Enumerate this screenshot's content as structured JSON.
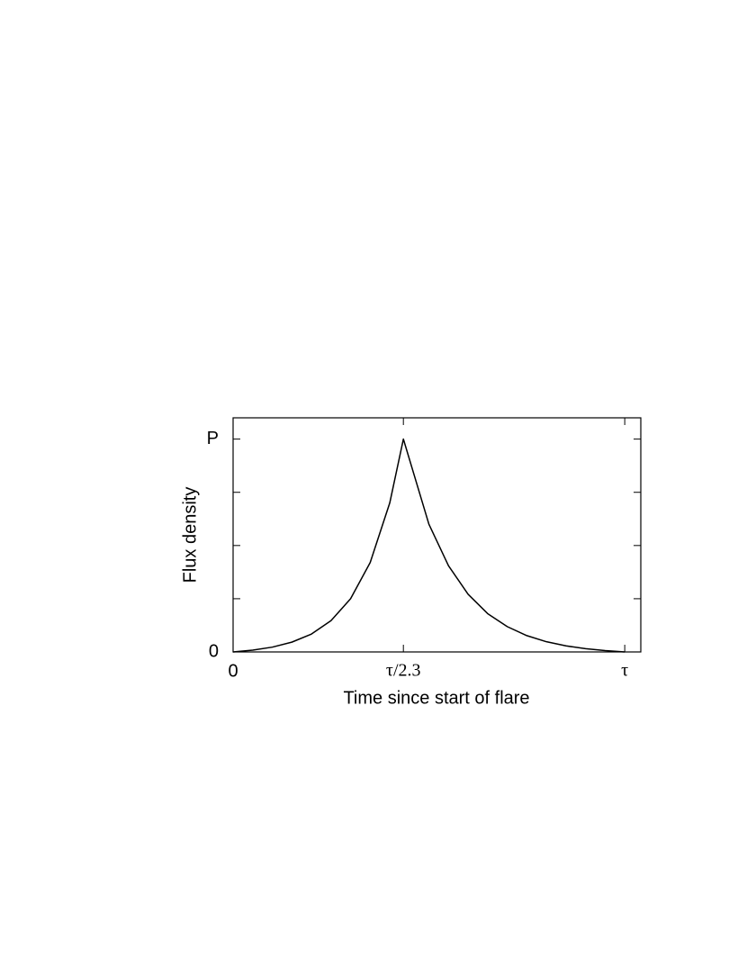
{
  "chart_data": {
    "type": "line",
    "xlabel": "Time since start of flare",
    "ylabel": "Flux density",
    "x": [
      0,
      0.05,
      0.1,
      0.15,
      0.2,
      0.25,
      0.3,
      0.35,
      0.4,
      0.4348,
      0.5,
      0.55,
      0.6,
      0.65,
      0.7,
      0.75,
      0.8,
      0.85,
      0.9,
      0.95,
      1.0
    ],
    "series": [
      {
        "name": "Flux density",
        "color": "#000000",
        "values": [
          0,
          0.0085,
          0.0225,
          0.046,
          0.084,
          0.147,
          0.25,
          0.42,
          0.7,
          1,
          0.6,
          0.405,
          0.271,
          0.18,
          0.119,
          0.0766,
          0.048,
          0.0284,
          0.0152,
          0.0061,
          0
        ]
      }
    ],
    "xlim": [
      0,
      1.041
    ],
    "ylim": [
      0,
      1.1
    ],
    "xticks": [
      0,
      {
        "value": 0.4348,
        "label": "τ/2.3"
      },
      {
        "value": 1,
        "label": "τ"
      }
    ],
    "yticks": [
      0,
      {
        "value": 1,
        "label": "P"
      }
    ],
    "yminor_ticks": [
      0.25,
      0.5,
      0.75
    ]
  }
}
